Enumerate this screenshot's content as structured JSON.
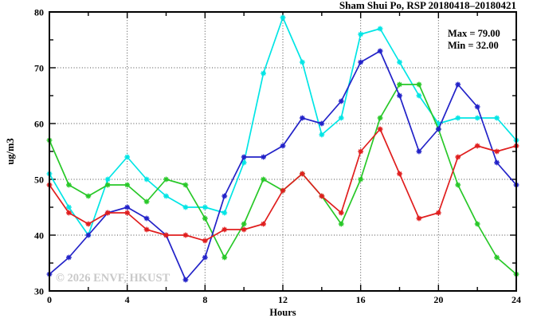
{
  "title": "Sham Shui Po, RSP 20180418–20180421",
  "annotations": {
    "max": "Max = 79.00",
    "min": "Min = 32.00"
  },
  "watermark": "© 2026 ENVF, HKUST",
  "chart_data": {
    "type": "line",
    "title": "Sham Shui Po, RSP 20180418–20180421",
    "xlabel": "Hours",
    "ylabel": "ug/m3",
    "xlim": [
      0,
      24
    ],
    "ylim": [
      30,
      80
    ],
    "x_major_ticks": [
      0,
      4,
      8,
      12,
      16,
      20,
      24
    ],
    "x_minor_step": 2,
    "y_major_ticks": [
      30,
      40,
      50,
      60,
      70,
      80
    ],
    "y_minor_step": 5,
    "x_gridlines": [
      4,
      8,
      12,
      16,
      20
    ],
    "y_gridlines": [
      40,
      50,
      60,
      70
    ],
    "grid_style": "dotted",
    "legend_position": "none",
    "marker": "asterisk",
    "max_value": 79.0,
    "min_value": 32.0,
    "x": [
      0,
      1,
      2,
      3,
      4,
      5,
      6,
      7,
      8,
      9,
      10,
      11,
      12,
      13,
      14,
      15,
      16,
      17,
      18,
      19,
      20,
      21,
      22,
      23,
      24
    ],
    "series": [
      {
        "name": "cyan",
        "color": "#00e5e5",
        "values": [
          51,
          45,
          40,
          50,
          54,
          50,
          47,
          45,
          45,
          44,
          53,
          69,
          79,
          71,
          58,
          61,
          76,
          77,
          71,
          65,
          60,
          61,
          61,
          61,
          57
        ]
      },
      {
        "name": "green",
        "color": "#28c828",
        "values": [
          57,
          49,
          47,
          49,
          49,
          46,
          50,
          49,
          43,
          36,
          42,
          50,
          48,
          51,
          47,
          42,
          50,
          61,
          67,
          67,
          59,
          49,
          42,
          36,
          33
        ]
      },
      {
        "name": "blue",
        "color": "#2222c8",
        "values": [
          33,
          36,
          40,
          44,
          45,
          43,
          40,
          32,
          36,
          47,
          54,
          54,
          56,
          61,
          60,
          64,
          71,
          73,
          65,
          55,
          59,
          67,
          63,
          53,
          49
        ]
      },
      {
        "name": "red",
        "color": "#e01e1e",
        "values": [
          49,
          44,
          42,
          44,
          44,
          41,
          40,
          40,
          39,
          41,
          41,
          42,
          48,
          51,
          47,
          44,
          55,
          59,
          51,
          43,
          44,
          54,
          56,
          55,
          56
        ]
      }
    ]
  }
}
